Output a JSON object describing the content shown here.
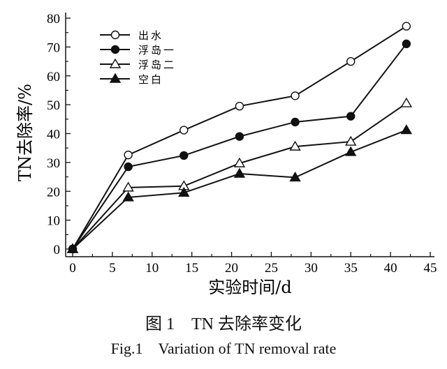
{
  "chart_data": {
    "type": "line",
    "xlabel": "实验时间/d",
    "ylabel": "TN去除率/%",
    "xlim": [
      0,
      45
    ],
    "ylim": [
      0,
      80
    ],
    "xticks": [
      0,
      5,
      10,
      15,
      20,
      25,
      30,
      35,
      40,
      45
    ],
    "yticks": [
      0,
      10,
      20,
      30,
      40,
      50,
      60,
      70,
      80
    ],
    "grid": false,
    "legend_position": "top-left",
    "x": [
      0,
      7,
      14,
      21,
      28,
      35,
      42
    ],
    "series": [
      {
        "name": "出水",
        "marker": "open-circle",
        "values": [
          0,
          32.6,
          41.2,
          49.5,
          53.1,
          65,
          77.2
        ]
      },
      {
        "name": "浮岛一",
        "marker": "filled-circle",
        "values": [
          0,
          28.5,
          32.4,
          39,
          44,
          46,
          71.1
        ]
      },
      {
        "name": "浮岛二",
        "marker": "open-triangle",
        "values": [
          0,
          21.3,
          21.8,
          29.7,
          35.5,
          37.2,
          50.5
        ]
      },
      {
        "name": "空白",
        "marker": "filled-triangle",
        "values": [
          0,
          17.9,
          19.5,
          26.1,
          24.8,
          33.6,
          41.2
        ]
      }
    ]
  },
  "caption": {
    "cn": "图 1　TN 去除率变化",
    "en": "Fig.1　Variation of TN removal rate"
  }
}
